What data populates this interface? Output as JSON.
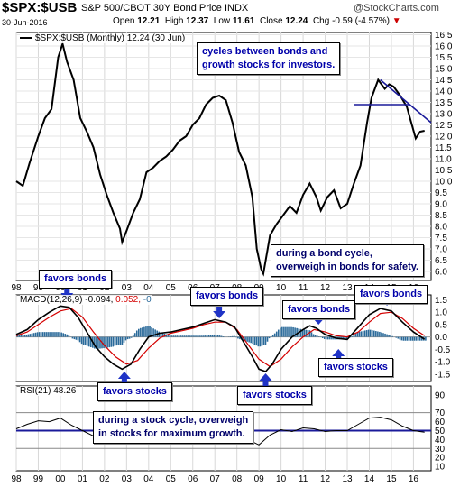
{
  "header": {
    "ticker": "$SPX:$USB",
    "description": "S&P 500/CBOT 30Y Bond Price INDX",
    "brand": "@StockCharts.com",
    "date": "30-Jun-2016",
    "open_label": "Open",
    "open": "12.21",
    "high_label": "High",
    "high": "12.37",
    "low_label": "Low",
    "low": "11.61",
    "close_label": "Close",
    "close": "12.24",
    "chg_label": "Chg",
    "chg": "-0.59 (-4.57%)"
  },
  "legends": {
    "price": "$SPX:$USB (Monthly) 12.24 (30 Jun)",
    "macd_prefix": "MACD(12,26,9)",
    "macd_value": "-0.094,",
    "macd_signal": "0.052,",
    "macd_hist": "-0",
    "rsi": "RSI(21) 48.26"
  },
  "annotations": {
    "cycles": [
      "cycles between bonds and",
      "growth stocks for investors."
    ],
    "bond_cycle": [
      "during a bond cycle,",
      "overweigh in bonds for safety."
    ],
    "stock_cycle": [
      "during a stock cycle, overweigh",
      "in stocks for maximum growth."
    ],
    "favors_bonds": "favors bonds",
    "favors_stocks": "favors stocks"
  },
  "colors": {
    "price_line": "#000000",
    "trendline": "#1a1a9a",
    "signal_line": "#d40000",
    "histogram": "#2a6a9a",
    "rsi_level": "#1a1a9a",
    "annotation_text": "#0000aa",
    "arrow": "#1f33c6"
  },
  "chart_data": [
    {
      "type": "line",
      "title": "$SPX:$USB (Monthly) 12.24 (30 Jun)",
      "x_ticks": [
        "98",
        "99",
        "00",
        "01",
        "02",
        "03",
        "04",
        "05",
        "06",
        "07",
        "08",
        "09",
        "10",
        "11",
        "12",
        "13",
        "14",
        "15",
        "16"
      ],
      "y_ticks": [
        "16.5",
        "16.0",
        "15.5",
        "15.0",
        "14.5",
        "14.0",
        "13.5",
        "13.0",
        "12.5",
        "12.0",
        "11.5",
        "11.0",
        "10.5",
        "10.0",
        "9.5",
        "9.0",
        "8.5",
        "8.0",
        "7.5",
        "7.0",
        "6.5",
        "6.0"
      ],
      "ylim": [
        5.6,
        16.6
      ],
      "series": [
        {
          "x": [
            1998.0,
            1998.3,
            1998.6,
            1999.0,
            1999.3,
            1999.6,
            1999.9,
            2000.1,
            2000.3,
            2000.6,
            2000.9,
            2001.2,
            2001.5,
            2001.8,
            2002.1,
            2002.4,
            2002.7,
            2002.8,
            2003.0,
            2003.3,
            2003.6,
            2003.9,
            2004.2,
            2004.5,
            2004.8,
            2005.1,
            2005.4,
            2005.7,
            2006.0,
            2006.3,
            2006.6,
            2006.9,
            2007.2,
            2007.5,
            2007.8,
            2008.1,
            2008.4,
            2008.7,
            2008.9,
            2009.1,
            2009.2,
            2009.5,
            2009.8,
            2010.1,
            2010.4,
            2010.7,
            2011.0,
            2011.3,
            2011.6,
            2011.8,
            2012.1,
            2012.4,
            2012.7,
            2013.0,
            2013.3,
            2013.6,
            2013.9,
            2014.1,
            2014.4,
            2014.7,
            2014.9,
            2015.1,
            2015.4,
            2015.7,
            2015.9,
            2016.1,
            2016.3,
            2016.5
          ],
          "y": [
            10.0,
            9.8,
            10.8,
            12.0,
            12.8,
            13.2,
            15.5,
            16.1,
            15.3,
            14.5,
            12.8,
            12.2,
            11.5,
            10.3,
            9.4,
            8.6,
            7.9,
            7.3,
            7.8,
            8.6,
            9.2,
            10.4,
            10.6,
            10.9,
            11.1,
            11.4,
            11.8,
            12.0,
            12.5,
            12.8,
            13.4,
            13.7,
            13.8,
            13.6,
            12.6,
            11.3,
            10.7,
            9.3,
            7.0,
            6.1,
            5.9,
            7.6,
            8.1,
            8.5,
            8.9,
            8.6,
            9.4,
            9.9,
            9.3,
            8.7,
            9.3,
            9.6,
            8.8,
            9.0,
            9.9,
            10.7,
            12.6,
            13.7,
            14.5,
            14.1,
            14.3,
            14.2,
            13.8,
            13.3,
            12.6,
            11.9,
            12.2,
            12.24
          ]
        }
      ],
      "trendlines": [
        {
          "x": [
            2013.3,
            2015.8
          ],
          "y": [
            13.4,
            13.4
          ]
        },
        {
          "x": [
            2014.5,
            2016.8
          ],
          "y": [
            14.5,
            12.6
          ]
        }
      ]
    },
    {
      "type": "line",
      "title": "MACD(12,26,9)",
      "y_ticks": [
        "1.5",
        "1.0",
        "0.5",
        "0.0",
        "-0.5",
        "-1.0",
        "-1.5"
      ],
      "ylim": [
        -1.8,
        1.7
      ],
      "series": [
        {
          "name": "MACD",
          "x": [
            1998.0,
            1998.5,
            1999.0,
            1999.5,
            2000.0,
            2000.4,
            2000.8,
            2001.2,
            2001.6,
            2002.0,
            2002.4,
            2002.8,
            2003.2,
            2003.6,
            2004.0,
            2004.5,
            2005.0,
            2005.5,
            2006.0,
            2006.5,
            2007.0,
            2007.5,
            2007.9,
            2008.3,
            2008.7,
            2009.0,
            2009.3,
            2009.6,
            2010.0,
            2010.5,
            2011.0,
            2011.3,
            2011.6,
            2012.0,
            2012.5,
            2013.0,
            2013.5,
            2014.0,
            2014.5,
            2015.0,
            2015.5,
            2016.0,
            2016.5
          ],
          "values": [
            0.1,
            0.3,
            0.7,
            1.0,
            1.25,
            1.2,
            0.8,
            0.2,
            -0.4,
            -0.8,
            -1.1,
            -1.3,
            -1.1,
            -0.5,
            0.0,
            0.15,
            0.2,
            0.3,
            0.4,
            0.55,
            0.7,
            0.6,
            0.4,
            -0.2,
            -0.8,
            -1.3,
            -1.4,
            -1.1,
            -0.5,
            0.0,
            0.3,
            0.45,
            0.35,
            0.1,
            -0.05,
            -0.1,
            0.4,
            0.9,
            1.15,
            1.05,
            0.6,
            0.2,
            -0.094
          ]
        },
        {
          "name": "Signal",
          "x": [
            1998.0,
            1998.5,
            1999.0,
            1999.5,
            2000.0,
            2000.5,
            2001.0,
            2001.5,
            2002.0,
            2002.5,
            2003.0,
            2003.5,
            2004.0,
            2004.5,
            2005.0,
            2005.5,
            2006.0,
            2006.5,
            2007.0,
            2007.5,
            2008.0,
            2008.5,
            2009.0,
            2009.5,
            2010.0,
            2010.5,
            2011.0,
            2011.5,
            2012.0,
            2012.5,
            2013.0,
            2013.5,
            2014.0,
            2014.5,
            2015.0,
            2015.5,
            2016.0,
            2016.5
          ],
          "values": [
            0.05,
            0.2,
            0.5,
            0.8,
            1.05,
            1.15,
            0.8,
            0.2,
            -0.35,
            -0.8,
            -1.1,
            -0.95,
            -0.45,
            -0.05,
            0.15,
            0.25,
            0.35,
            0.5,
            0.6,
            0.6,
            0.3,
            -0.3,
            -0.9,
            -1.2,
            -0.9,
            -0.4,
            0.0,
            0.3,
            0.2,
            0.05,
            0.0,
            0.2,
            0.6,
            0.95,
            1.0,
            0.75,
            0.35,
            0.052
          ]
        }
      ]
    },
    {
      "type": "line",
      "title": "RSI(21) 48.26",
      "y_ticks": [
        "90",
        "70",
        "60",
        "50",
        "40",
        "30",
        "20",
        "10"
      ],
      "ylim": [
        5,
        100
      ],
      "levels": [
        70,
        50,
        30
      ],
      "series": [
        {
          "x": [
            1998.0,
            1998.5,
            1999.0,
            1999.5,
            2000.0,
            2000.5,
            2001.0,
            2001.5,
            2002.0,
            2002.5,
            2003.0,
            2003.5,
            2004.0,
            2004.5,
            2005.0,
            2005.5,
            2006.0,
            2006.5,
            2007.0,
            2007.5,
            2008.0,
            2008.5,
            2009.0,
            2009.5,
            2010.0,
            2010.5,
            2011.0,
            2011.5,
            2012.0,
            2012.5,
            2013.0,
            2013.5,
            2014.0,
            2014.5,
            2015.0,
            2015.5,
            2016.0,
            2016.5
          ],
          "values": [
            52,
            57,
            61,
            60,
            64,
            56,
            50,
            44,
            40,
            38,
            36,
            48,
            54,
            55,
            55,
            56,
            57,
            59,
            60,
            56,
            48,
            40,
            34,
            45,
            51,
            49,
            53,
            52,
            49,
            50,
            50,
            57,
            64,
            65,
            62,
            55,
            50,
            48.26
          ]
        }
      ]
    }
  ]
}
